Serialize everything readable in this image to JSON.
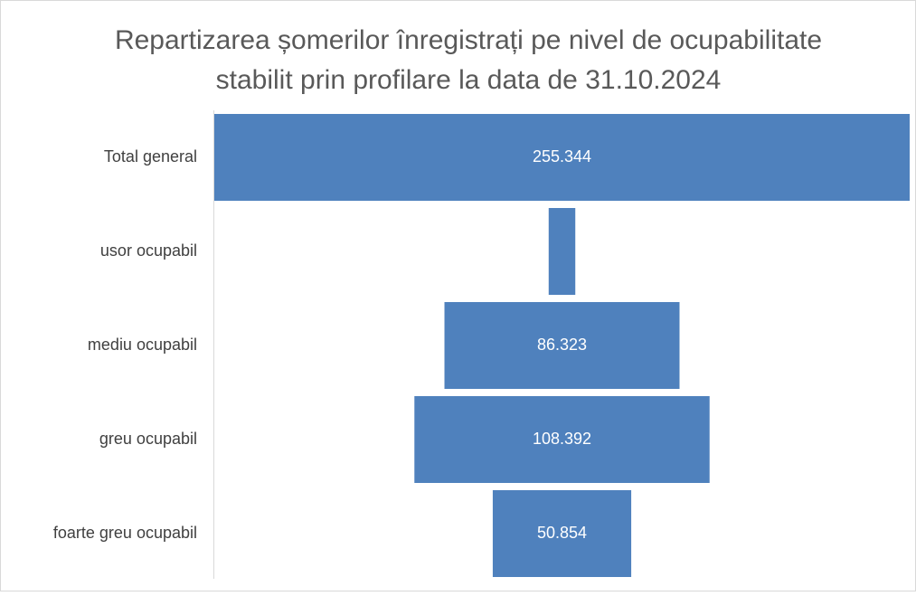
{
  "chart_data": {
    "type": "funnel",
    "title": [
      "Repartizarea șomerilor înregistrați pe nivel de ocupabilitate",
      "stabilit prin profilare la data de 31.10.2024"
    ],
    "categories": [
      "Total general",
      "usor ocupabil",
      "mediu ocupabil",
      "greu ocupabil",
      "foarte greu ocupabil"
    ],
    "values": [
      255344,
      9775,
      86323,
      108392,
      50854
    ],
    "value_labels": [
      "255.344",
      null,
      "86.323",
      "108.392",
      "50.854"
    ],
    "color": "#4f81bd"
  }
}
